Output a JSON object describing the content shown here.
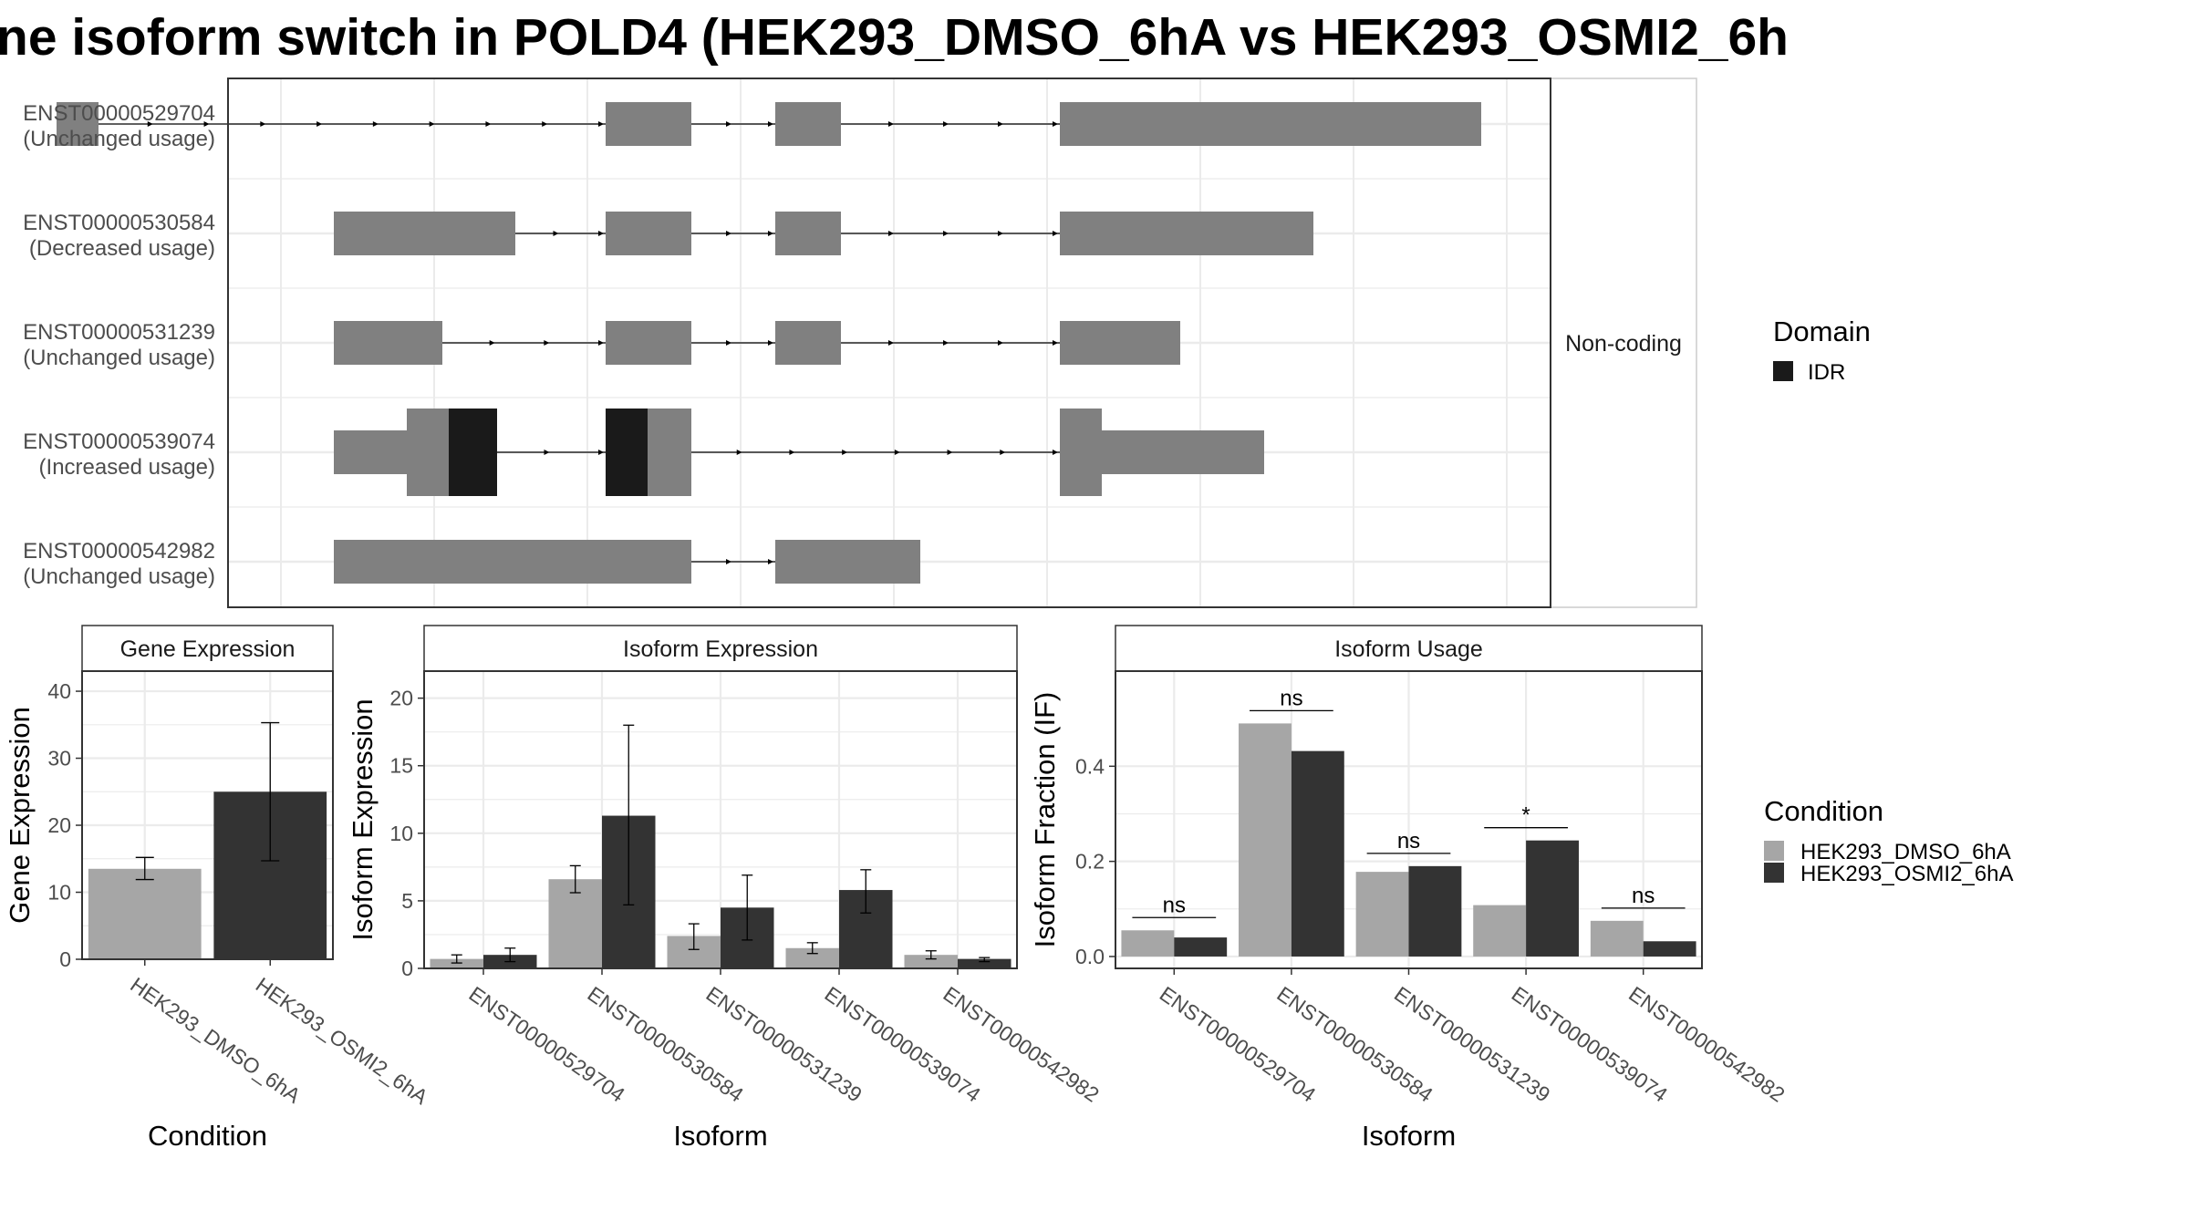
{
  "title": "ne isoform switch in POLD4 (HEK293_DMSO_6hA vs HEK293_OSMI2_6h",
  "colors": {
    "exon": "#808080",
    "domain_idr": "#1a1a1a",
    "cond1": "#a6a6a6",
    "cond2": "#333333",
    "grid": "#ebebeb",
    "panel_border": "#333333",
    "strip_fill": "#ffffff"
  },
  "structure_panel": {
    "strip_label": "Non-coding",
    "transcripts": [
      {
        "id": "ENST00000529704",
        "usage": "(Unchanged usage)",
        "exons": [
          [
            62,
            108
          ],
          [
            664,
            758
          ],
          [
            850,
            922
          ],
          [
            1162,
            1624
          ]
        ],
        "domains": []
      },
      {
        "id": "ENST00000530584",
        "usage": "(Decreased usage)",
        "exons": [
          [
            366,
            565
          ],
          [
            664,
            758
          ],
          [
            850,
            922
          ],
          [
            1162,
            1440
          ]
        ],
        "domains": []
      },
      {
        "id": "ENST00000531239",
        "usage": "(Unchanged usage)",
        "exons": [
          [
            366,
            485
          ],
          [
            664,
            758
          ],
          [
            850,
            922
          ],
          [
            1162,
            1294
          ]
        ],
        "domains": []
      },
      {
        "id": "ENST00000539074",
        "usage": "(Increased usage)",
        "exons_thin": [
          [
            366,
            446
          ],
          [
            1208,
            1386
          ]
        ],
        "exons": [
          [
            446,
            545
          ],
          [
            664,
            758
          ],
          [
            1162,
            1208
          ]
        ],
        "domains": [
          [
            492,
            545
          ],
          [
            664,
            710
          ]
        ]
      },
      {
        "id": "ENST00000542982",
        "usage": "(Unchanged usage)",
        "exons": [
          [
            366,
            758
          ],
          [
            850,
            1009
          ]
        ],
        "domains": []
      }
    ]
  },
  "legend_domain": {
    "title": "Domain",
    "items": [
      {
        "label": "IDR",
        "color": "#1a1a1a"
      }
    ]
  },
  "legend_condition": {
    "title": "Condition",
    "items": [
      {
        "label": "HEK293_DMSO_6hA",
        "color": "#a6a6a6"
      },
      {
        "label": "HEK293_OSMI2_6hA",
        "color": "#333333"
      }
    ]
  },
  "chart_data": [
    {
      "type": "bar",
      "strip": "Gene Expression",
      "xlabel": "Condition",
      "ylabel": "Gene Expression",
      "categories": [
        "HEK293_DMSO_6hA",
        "HEK293_OSMI2_6hA"
      ],
      "values": [
        13.5,
        25.0
      ],
      "err_low": [
        11.9,
        14.7
      ],
      "err_high": [
        15.2,
        35.3
      ],
      "ylim": [
        0,
        43
      ],
      "yticks": [
        0,
        10,
        20,
        30,
        40
      ]
    },
    {
      "type": "bar",
      "strip": "Isoform Expression",
      "xlabel": "Isoform",
      "ylabel": "Isoform Expression",
      "categories": [
        "ENST00000529704",
        "ENST00000530584",
        "ENST00000531239",
        "ENST00000539074",
        "ENST00000542982"
      ],
      "series": [
        {
          "name": "HEK293_DMSO_6hA",
          "values": [
            0.7,
            6.6,
            2.4,
            1.5,
            1.0
          ],
          "err_low": [
            0.4,
            5.6,
            1.4,
            1.1,
            0.7
          ],
          "err_high": [
            1.0,
            7.6,
            3.3,
            1.9,
            1.3
          ]
        },
        {
          "name": "HEK293_OSMI2_6hA",
          "values": [
            1.0,
            11.3,
            4.5,
            5.8,
            0.7
          ],
          "err_low": [
            0.5,
            4.7,
            2.1,
            4.1,
            0.5
          ],
          "err_high": [
            1.5,
            18.0,
            6.9,
            7.3,
            0.8
          ]
        }
      ],
      "ylim": [
        0,
        22
      ],
      "yticks": [
        0,
        5,
        10,
        15,
        20
      ]
    },
    {
      "type": "bar",
      "strip": "Isoform Usage",
      "xlabel": "Isoform",
      "ylabel": "Isoform Fraction (IF)",
      "categories": [
        "ENST00000529704",
        "ENST00000530584",
        "ENST00000531239",
        "ENST00000539074",
        "ENST00000542982"
      ],
      "series": [
        {
          "name": "HEK293_DMSO_6hA",
          "values": [
            0.055,
            0.49,
            0.178,
            0.108,
            0.075
          ]
        },
        {
          "name": "HEK293_OSMI2_6hA",
          "values": [
            0.04,
            0.432,
            0.19,
            0.244,
            0.032
          ]
        }
      ],
      "significance": [
        "ns",
        "ns",
        "ns",
        "*",
        "ns"
      ],
      "ylim": [
        -0.025,
        0.6
      ],
      "yticks": [
        0.0,
        0.2,
        0.4
      ],
      "ytick_labels": [
        "0.0",
        "0.2",
        "0.4"
      ]
    }
  ]
}
